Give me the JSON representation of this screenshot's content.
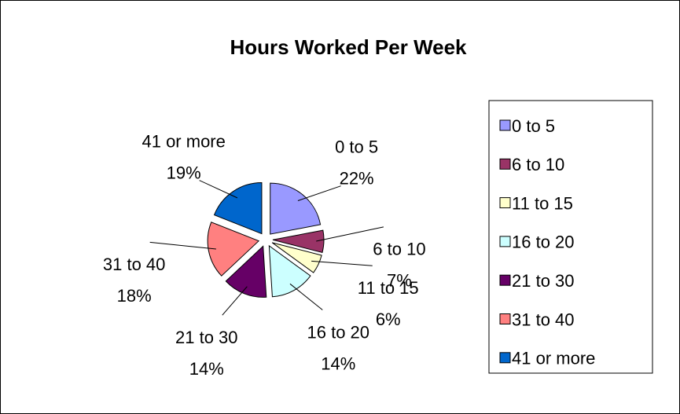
{
  "chart_data": {
    "type": "pie",
    "title": "Hours Worked Per Week",
    "categories": [
      "0 to 5",
      "6 to 10",
      "11 to 15",
      "16 to 20",
      "21 to 30",
      "31 to 40",
      "41 or more"
    ],
    "values": [
      22,
      7,
      6,
      14,
      14,
      18,
      19
    ],
    "value_labels": [
      "22%",
      "7%",
      "6%",
      "14%",
      "14%",
      "18%",
      "19%"
    ],
    "colors": [
      "#9999ff",
      "#993366",
      "#ffffcc",
      "#ccffff",
      "#660066",
      "#ff8080",
      "#0066cc"
    ],
    "legend": "right"
  }
}
